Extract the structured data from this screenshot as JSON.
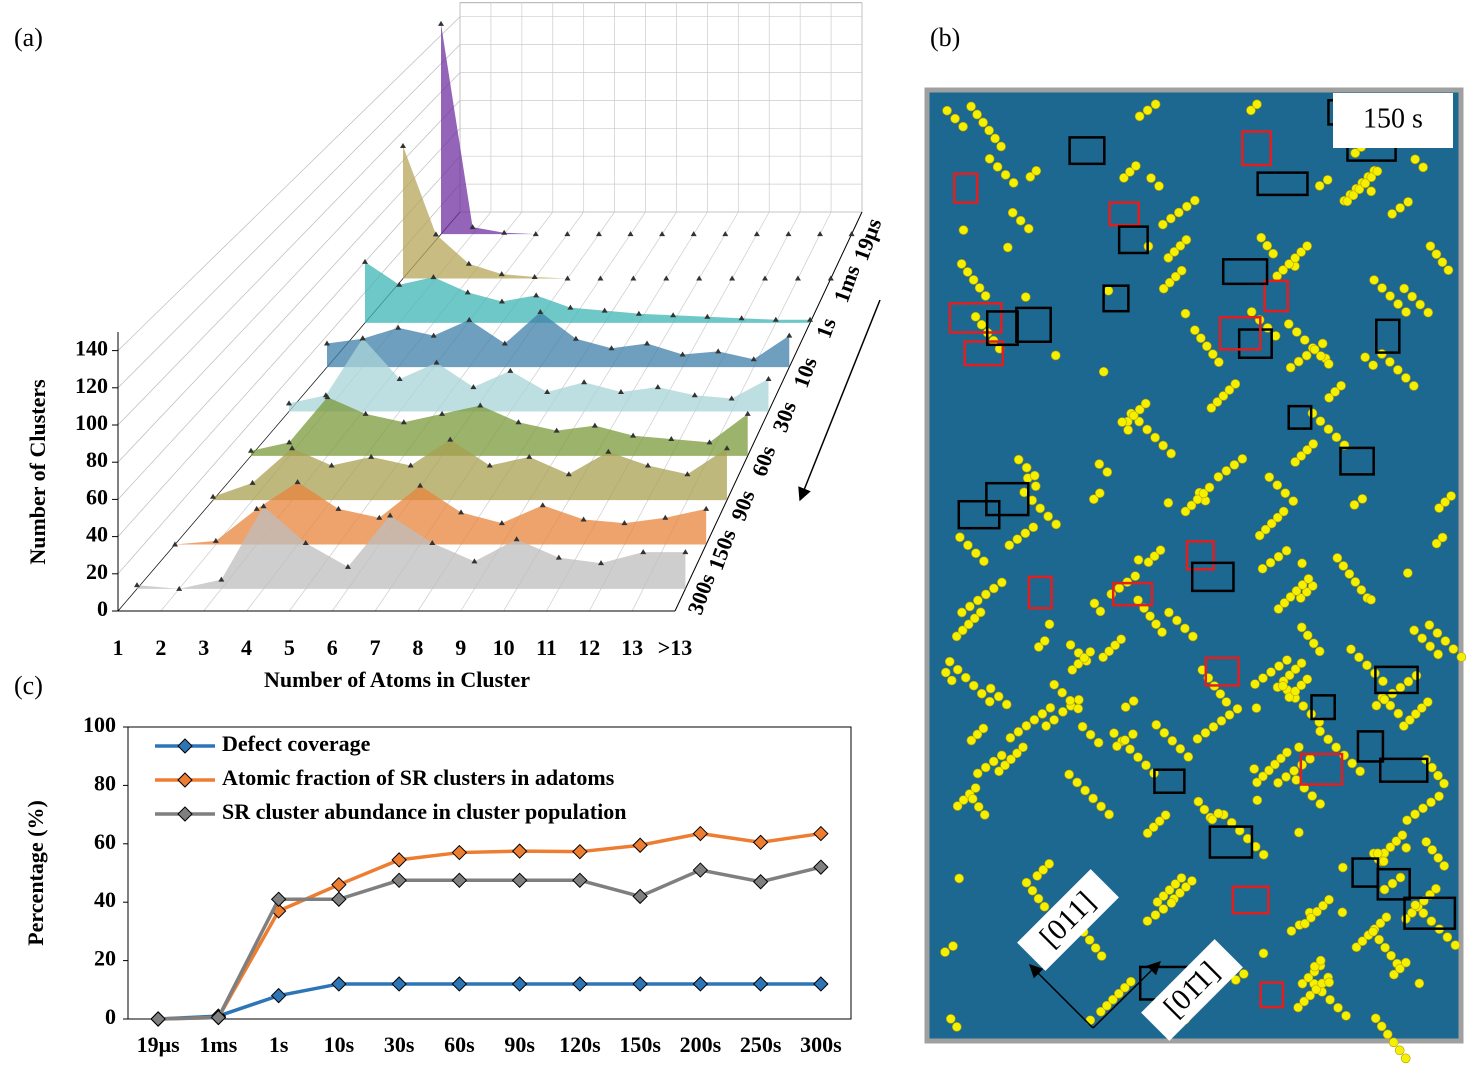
{
  "panels": {
    "a": "(a)",
    "b": "(b)",
    "c": "(c)"
  },
  "image": {
    "time_label": "150 s",
    "directions": [
      "[011]",
      "[01̄1]"
    ]
  },
  "chart_data": [
    {
      "type": "waterfall",
      "xlabel": "Number of Atoms in Cluster",
      "zlabel": "Number of Clusters",
      "categories": [
        "1",
        "2",
        "3",
        "4",
        "5",
        "6",
        "7",
        "8",
        "9",
        "10",
        "11",
        "12",
        "13",
        ">13"
      ],
      "ylim": [
        0,
        150
      ],
      "yticks": [
        0,
        20,
        40,
        60,
        80,
        100,
        120,
        140
      ],
      "series": [
        {
          "name": "19μs",
          "color": "#7030a0",
          "values": [
            148,
            5,
            1,
            0,
            0,
            0,
            0,
            0,
            0,
            0,
            0,
            0,
            0,
            0
          ]
        },
        {
          "name": "1ms",
          "color": "#b5a55a",
          "values": [
            90,
            30,
            10,
            3,
            1,
            0,
            0,
            0,
            0,
            0,
            0,
            0,
            0,
            0
          ]
        },
        {
          "name": "1s",
          "color": "#3fb5b5",
          "values": [
            40,
            25,
            30,
            20,
            14,
            18,
            10,
            8,
            6,
            5,
            4,
            3,
            2,
            2
          ]
        },
        {
          "name": "10s",
          "color": "#3f7fa8",
          "values": [
            15,
            18,
            25,
            20,
            30,
            15,
            35,
            18,
            12,
            15,
            8,
            10,
            5,
            20
          ]
        },
        {
          "name": "30s",
          "color": "#a8d4d8",
          "values": [
            5,
            10,
            45,
            20,
            30,
            15,
            25,
            12,
            18,
            12,
            15,
            10,
            8,
            20
          ]
        },
        {
          "name": "60s",
          "color": "#7a9a3a",
          "values": [
            3,
            8,
            35,
            25,
            20,
            25,
            30,
            20,
            15,
            18,
            12,
            10,
            8,
            25
          ]
        },
        {
          "name": "90s",
          "color": "#a8a050",
          "values": [
            2,
            10,
            30,
            20,
            25,
            20,
            35,
            20,
            25,
            15,
            28,
            20,
            15,
            30
          ]
        },
        {
          "name": "150s",
          "color": "#e8843c",
          "values": [
            0,
            2,
            20,
            35,
            20,
            15,
            33,
            18,
            12,
            22,
            14,
            12,
            15,
            20
          ]
        },
        {
          "name": "300s",
          "color": "#bdbdbd",
          "values": [
            2,
            0,
            5,
            45,
            25,
            12,
            40,
            25,
            15,
            27,
            17,
            14,
            20,
            20
          ]
        }
      ]
    },
    {
      "type": "line",
      "ylabel": "Percentage (%)",
      "categories": [
        "19μs",
        "1ms",
        "1s",
        "10s",
        "30s",
        "60s",
        "90s",
        "120s",
        "150s",
        "200s",
        "250s",
        "300s"
      ],
      "ylim": [
        0,
        100
      ],
      "yticks": [
        0,
        20,
        40,
        60,
        80,
        100
      ],
      "series": [
        {
          "name": "Defect coverage",
          "color": "#2e75b6",
          "values": [
            0,
            1,
            8,
            12,
            12,
            12,
            12,
            12,
            12,
            12,
            12,
            12
          ]
        },
        {
          "name": "Atomic fraction of SR clusters in adatoms",
          "color": "#ed7d31",
          "values": [
            0,
            0.5,
            37,
            46,
            54.5,
            57,
            57.5,
            57.3,
            59.5,
            63.5,
            60.5,
            63.5
          ]
        },
        {
          "name": "SR cluster abundance in cluster population",
          "color": "#7f7f7f",
          "values": [
            0,
            0.5,
            41,
            41,
            47.5,
            47.5,
            47.5,
            47.5,
            42,
            51,
            47,
            52
          ]
        }
      ]
    }
  ]
}
